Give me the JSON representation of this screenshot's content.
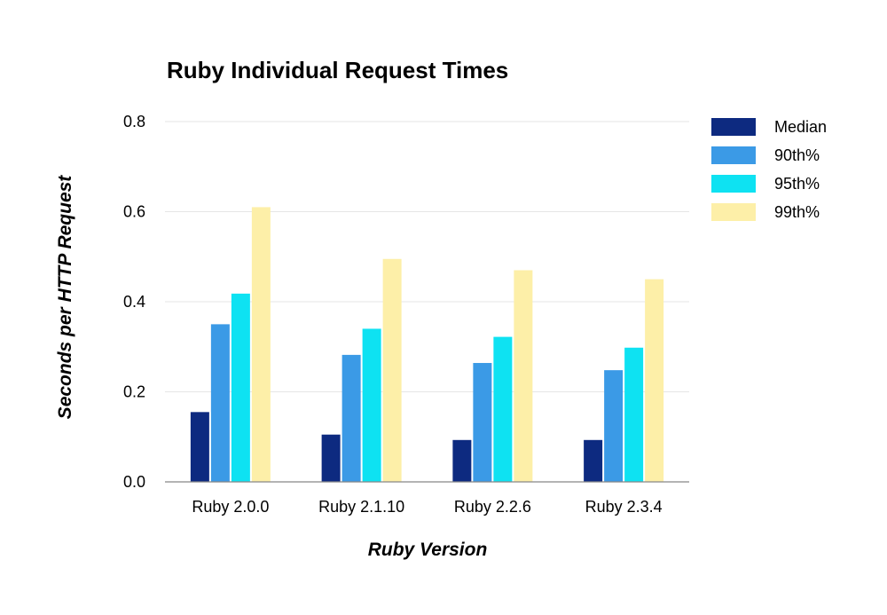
{
  "chart_data": {
    "type": "bar",
    "title": "Ruby Individual Request Times",
    "xlabel": "Ruby Version",
    "ylabel": "Seconds per HTTP Request",
    "categories": [
      "Ruby 2.0.0",
      "Ruby 2.1.10",
      "Ruby 2.2.6",
      "Ruby 2.3.4"
    ],
    "series": [
      {
        "name": "Median",
        "color": "#0d2a80",
        "values": [
          0.155,
          0.105,
          0.093,
          0.093
        ]
      },
      {
        "name": "90th%",
        "color": "#3b9ae6",
        "values": [
          0.35,
          0.282,
          0.264,
          0.248
        ]
      },
      {
        "name": "95th%",
        "color": "#0ee2f2",
        "values": [
          0.418,
          0.34,
          0.322,
          0.298
        ]
      },
      {
        "name": "99th%",
        "color": "#fdefa8",
        "values": [
          0.61,
          0.495,
          0.47,
          0.45
        ]
      }
    ],
    "yticks": [
      "0.0",
      "0.2",
      "0.4",
      "0.6",
      "0.8"
    ],
    "ylim": [
      0,
      0.8
    ],
    "grid": true,
    "gridline_color": "#e6e6e6",
    "axis_color": "#888888",
    "legend_position": "right"
  }
}
